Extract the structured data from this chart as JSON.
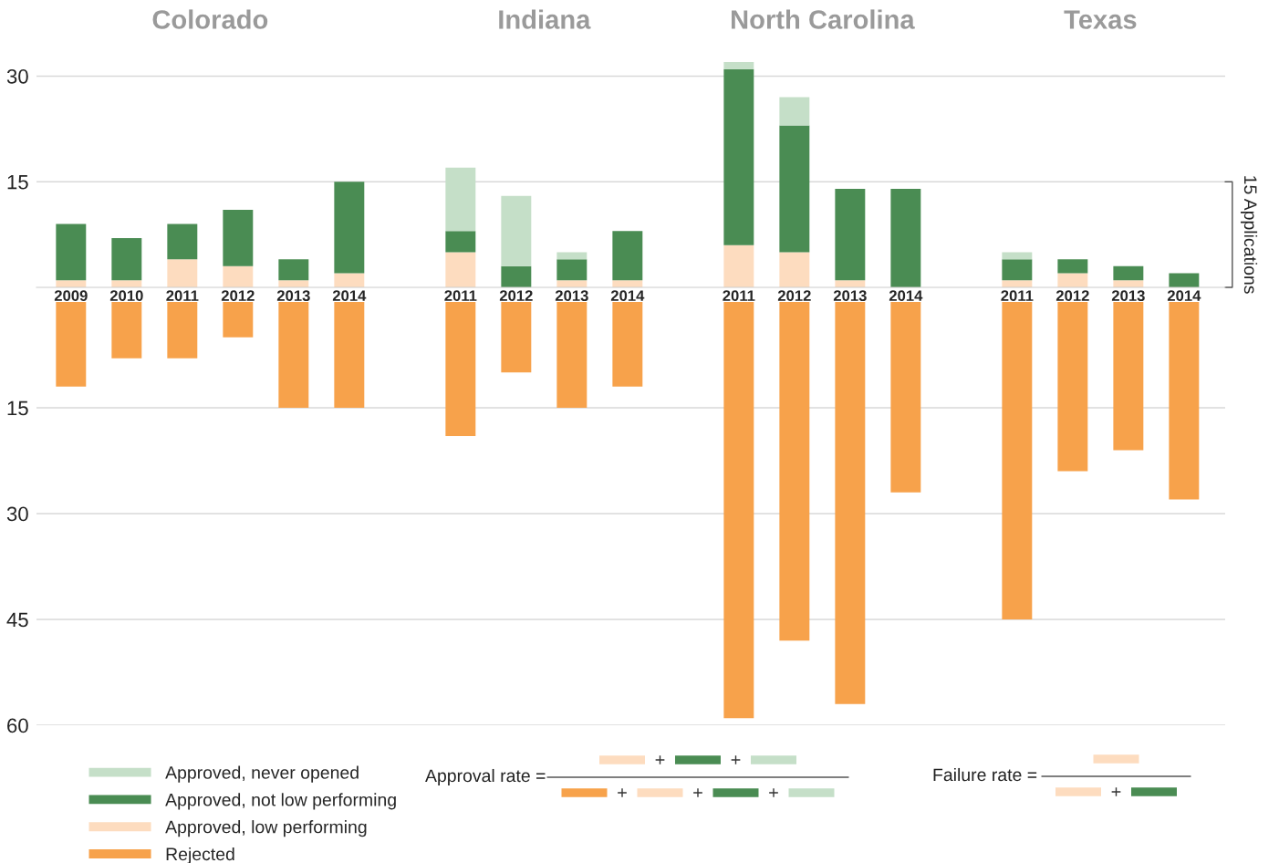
{
  "chart_data": [
    {
      "type": "bar",
      "categories": [
        "2009",
        "2010",
        "2011",
        "2012",
        "2013",
        "2014",
        null,
        "2011",
        "2012",
        "2013",
        "2014",
        null,
        "2011",
        "2012",
        "2013",
        "2014",
        null,
        "2011",
        "2012",
        "2013",
        "2014"
      ],
      "stacked": true,
      "ylim": [
        0,
        32
      ],
      "yticks": [
        15,
        30
      ],
      "grid": "y",
      "legend": "bottom left",
      "annotations": [
        "Colorado",
        "Indiana",
        "North Carolina",
        "Texas",
        "15 Applications"
      ],
      "series": [
        {
          "name": "Approved, low performing",
          "color": "#fddcbf",
          "values": [
            1,
            1,
            4,
            3,
            1,
            2,
            null,
            5,
            0,
            1,
            1,
            null,
            6,
            5,
            1,
            0,
            null,
            1,
            2,
            1,
            0
          ]
        },
        {
          "name": "Approved, not low performing",
          "color": "#4a8c53",
          "values": [
            8,
            6,
            5,
            8,
            3,
            13,
            null,
            3,
            3,
            3,
            7,
            null,
            25,
            18,
            13,
            14,
            null,
            3,
            2,
            2,
            2
          ]
        },
        {
          "name": "Approved, never opened",
          "color": "#c5dfc8",
          "values": [
            0,
            0,
            0,
            0,
            0,
            0,
            null,
            9,
            10,
            1,
            0,
            null,
            1,
            4,
            0,
            0,
            null,
            1,
            0,
            0,
            0
          ]
        }
      ]
    },
    {
      "type": "bar",
      "categories": [
        "2009",
        "2010",
        "2011",
        "2012",
        "2013",
        "2014",
        null,
        "2011",
        "2012",
        "2013",
        "2014",
        null,
        "2011",
        "2012",
        "2013",
        "2014",
        null,
        "2011",
        "2012",
        "2013",
        "2014"
      ],
      "ylim": [
        60,
        0
      ],
      "yticks": [
        15,
        30,
        45,
        60
      ],
      "grid": "y",
      "tick_labels": "y",
      "legend": "bottom left",
      "annotations": [
        "Approval rate =",
        "Failure rate ="
      ],
      "series": [
        {
          "name": "Rejected",
          "color": "#f7a24b",
          "values": [
            12,
            8,
            8,
            5,
            15,
            15,
            null,
            19,
            10,
            15,
            12,
            null,
            59,
            48,
            57,
            27,
            null,
            45,
            24,
            21,
            28
          ]
        }
      ]
    }
  ]
}
